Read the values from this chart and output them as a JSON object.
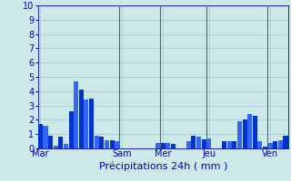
{
  "title": "Précipitations 24h ( mm )",
  "ylim": [
    0,
    10
  ],
  "yticks": [
    0,
    1,
    2,
    3,
    4,
    5,
    6,
    7,
    8,
    9,
    10
  ],
  "background_color": "#cce8e8",
  "bar_color_dark": "#0033cc",
  "bar_color_light": "#3366ff",
  "grid_color": "#aacccc",
  "vline_color": "#556677",
  "day_labels": [
    "Mar",
    "Sam",
    "Mer",
    "Jeu",
    "Ven"
  ],
  "values": [
    1.7,
    1.6,
    0.9,
    0.2,
    0.85,
    0.3,
    2.6,
    4.7,
    4.1,
    3.4,
    3.5,
    0.9,
    0.85,
    0.6,
    0.55,
    0.5,
    0.0,
    0.0,
    0.0,
    0.0,
    0.0,
    0.0,
    0.0,
    0.35,
    0.4,
    0.35,
    0.3,
    0.0,
    0.0,
    0.5,
    0.9,
    0.85,
    0.65,
    0.7,
    0.0,
    0.0,
    0.5,
    0.5,
    0.5,
    1.9,
    2.0,
    2.4,
    2.3,
    0.5,
    0.1,
    0.4,
    0.5,
    0.6,
    0.9
  ],
  "vline_positions": [
    15.5,
    23.5,
    32.5,
    44.5
  ],
  "day_tick_positions": [
    0,
    16,
    24,
    33,
    45
  ],
  "figsize": [
    3.2,
    2.0
  ],
  "dpi": 100,
  "title_fontsize": 8,
  "tick_fontsize": 7,
  "xlabel_fontsize": 8
}
